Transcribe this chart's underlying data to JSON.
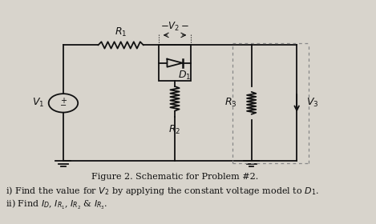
{
  "background_color": "#d8d4cc",
  "fig_width": 4.69,
  "fig_height": 2.8,
  "dpi": 100,
  "caption": "Figure 2. Schematic for Problem #2.",
  "line1": "i) Find the value for $V_2$ by applying the constant voltage model to $D_1$.",
  "line2": "ii) Find $I_D$, $I_{R_1}$, $I_{R_2}$ & $I_{R_3}$.",
  "caption_fontsize": 8.0,
  "text_fontsize": 8.0,
  "circuit_color": "#111111",
  "dotted_color": "#888888"
}
